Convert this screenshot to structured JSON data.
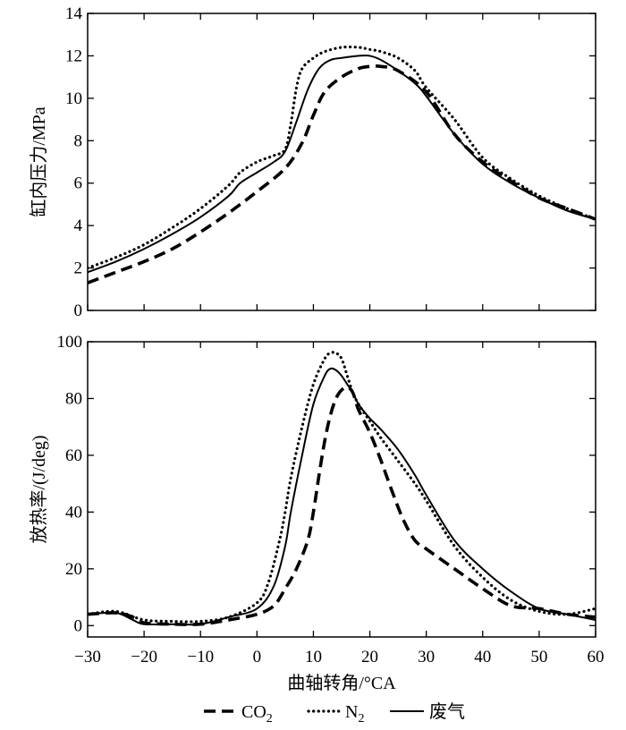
{
  "colors": {
    "series": "#000000",
    "background": "#ffffff"
  },
  "chart_data": [
    {
      "type": "line",
      "title": "",
      "xlabel": "",
      "ylabel": "缸内压力/MPa",
      "xlim": [
        -30,
        60
      ],
      "ylim": [
        0,
        14
      ],
      "xticks": [
        -30,
        -20,
        -10,
        0,
        10,
        20,
        30,
        40,
        50,
        60
      ],
      "yticks": [
        0,
        2,
        4,
        6,
        8,
        10,
        12,
        14
      ],
      "grid": false,
      "series": [
        {
          "name": "CO2",
          "style": "dashed",
          "x": [
            -30,
            -25,
            -20,
            -15,
            -10,
            -5,
            0,
            5,
            8,
            10,
            12,
            15,
            18,
            20,
            22,
            25,
            30,
            35,
            40,
            45,
            50,
            55,
            60
          ],
          "y": [
            1.3,
            1.8,
            2.3,
            2.9,
            3.7,
            4.6,
            5.6,
            6.7,
            7.9,
            9.2,
            10.3,
            11.0,
            11.4,
            11.5,
            11.5,
            11.3,
            10.3,
            8.3,
            7.0,
            6.1,
            5.3,
            4.8,
            4.3
          ]
        },
        {
          "name": "N2",
          "style": "dotted",
          "x": [
            -30,
            -25,
            -20,
            -15,
            -10,
            -5,
            -3,
            0,
            3,
            5,
            6,
            7,
            8,
            10,
            12,
            15,
            18,
            20,
            22,
            25,
            28,
            30,
            35,
            40,
            45,
            50,
            55,
            60
          ],
          "y": [
            2.0,
            2.5,
            3.1,
            3.9,
            4.8,
            5.9,
            6.5,
            7.0,
            7.3,
            7.6,
            8.8,
            10.5,
            11.4,
            11.9,
            12.2,
            12.4,
            12.4,
            12.3,
            12.2,
            11.9,
            11.3,
            10.5,
            9.0,
            7.2,
            6.2,
            5.4,
            4.8,
            4.3
          ]
        },
        {
          "name": "废气",
          "style": "solid",
          "x": [
            -30,
            -25,
            -20,
            -15,
            -10,
            -5,
            -3,
            0,
            3,
            5,
            7,
            9,
            11,
            13,
            15,
            18,
            20,
            22,
            25,
            28,
            30,
            35,
            40,
            45,
            50,
            55,
            60
          ],
          "y": [
            1.8,
            2.3,
            2.9,
            3.6,
            4.4,
            5.4,
            6.0,
            6.5,
            7.0,
            7.5,
            8.9,
            10.4,
            11.4,
            11.8,
            11.9,
            12.0,
            12.0,
            11.8,
            11.3,
            10.7,
            10.1,
            8.3,
            6.9,
            6.0,
            5.3,
            4.7,
            4.3
          ]
        }
      ]
    },
    {
      "type": "line",
      "title": "",
      "xlabel": "曲轴转角/°CA",
      "ylabel": "放热率/(J/deg)",
      "xlim": [
        -30,
        60
      ],
      "ylim": [
        -4,
        100
      ],
      "xticks": [
        -30,
        -20,
        -10,
        0,
        10,
        20,
        30,
        40,
        50,
        60
      ],
      "yticks": [
        0,
        20,
        40,
        60,
        80,
        100
      ],
      "grid": false,
      "legend_position": "bottom-center",
      "series": [
        {
          "name": "CO2",
          "style": "dashed",
          "x": [
            -30,
            -25,
            -22,
            -20,
            -15,
            -10,
            -5,
            0,
            3,
            5,
            7,
            9,
            10,
            11,
            12,
            13,
            14,
            15,
            16,
            17,
            18,
            20,
            22,
            24,
            26,
            28,
            30,
            35,
            40,
            45,
            50,
            55,
            60
          ],
          "y": [
            4,
            4.5,
            3,
            1,
            0.5,
            0.5,
            2,
            4,
            7,
            13,
            20,
            30,
            40,
            53,
            65,
            74,
            80,
            83,
            84,
            82,
            76,
            68,
            58,
            47,
            37,
            30,
            27,
            20,
            13,
            7,
            6,
            4,
            3
          ]
        },
        {
          "name": "N2",
          "style": "dotted",
          "x": [
            -30,
            -25,
            -20,
            -15,
            -10,
            -5,
            0,
            2,
            4,
            5,
            6,
            8,
            10,
            12,
            13,
            14,
            15,
            16,
            17,
            18,
            20,
            22,
            25,
            28,
            30,
            35,
            40,
            45,
            50,
            55,
            60
          ],
          "y": [
            4,
            5,
            2,
            1.5,
            1.5,
            3,
            8,
            15,
            30,
            40,
            52,
            70,
            85,
            94,
            96,
            96,
            94,
            88,
            82,
            78,
            72,
            66,
            58,
            50,
            44,
            28,
            17,
            9,
            5,
            4,
            6
          ]
        },
        {
          "name": "废气",
          "style": "solid",
          "x": [
            -30,
            -25,
            -22,
            -20,
            -15,
            -10,
            -5,
            0,
            3,
            5,
            6,
            8,
            10,
            12,
            13,
            14,
            15,
            16,
            17,
            18,
            20,
            22,
            25,
            28,
            30,
            35,
            40,
            45,
            50,
            55,
            60
          ],
          "y": [
            4,
            4.5,
            2,
            0.5,
            0.5,
            0.5,
            3,
            6,
            14,
            28,
            40,
            60,
            78,
            88,
            90.5,
            90,
            88,
            85,
            82,
            78,
            73,
            69,
            62,
            53,
            46,
            30,
            20,
            12,
            6,
            4,
            2
          ]
        }
      ]
    }
  ],
  "legend": {
    "items": [
      {
        "style": "dashed",
        "base": "CO",
        "sub": "2"
      },
      {
        "style": "dotted",
        "base": "N",
        "sub": "2"
      },
      {
        "style": "solid",
        "base": "废气",
        "sub": ""
      }
    ]
  }
}
